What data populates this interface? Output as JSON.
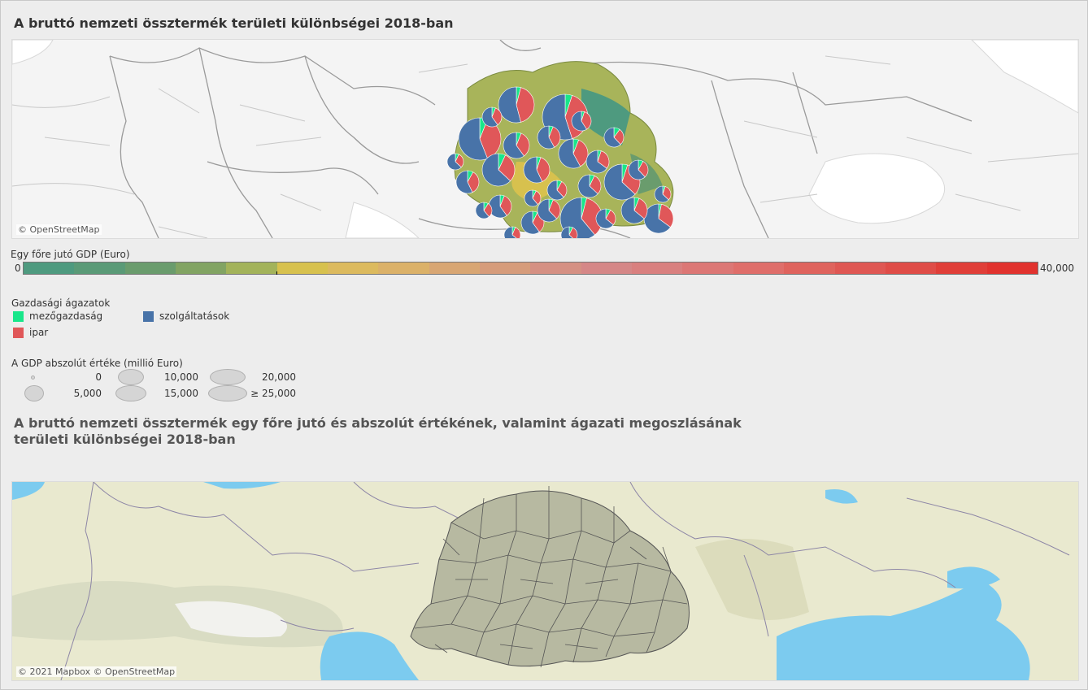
{
  "title1": "A bruttó nemzeti össztermék területi különbségei 2018-ban",
  "map1": {
    "attribution": "© OpenStreetMap"
  },
  "gdp_legend": {
    "title": "Egy főre jutó GDP (Euro)",
    "min_label": "0",
    "max_label": "40,000",
    "colors": [
      "#4e9a7f",
      "#5a9a77",
      "#6a9c6d",
      "#82a463",
      "#a3b35a",
      "#d7c14e",
      "#dcba5e",
      "#dbb168",
      "#d8a673",
      "#d69c7b",
      "#d59083",
      "#d58787",
      "#d9807f",
      "#dc7775",
      "#df6e6a",
      "#df635d",
      "#df5753",
      "#df4c47",
      "#e03e38",
      "#e1322e"
    ]
  },
  "sector_legend": {
    "title": "Gazdasági ágazatok",
    "items": [
      {
        "label": "mezőgazdaság",
        "color": "#19e68a"
      },
      {
        "label": "szolgáltatások",
        "color": "#4873a8"
      },
      {
        "label": "ipar",
        "color": "#e05759"
      }
    ]
  },
  "size_legend": {
    "title": "A GDP abszolút értéke (millió Euro)",
    "items": [
      "0",
      "5,000",
      "10,000",
      "15,000",
      "20,000",
      "≥ 25,000"
    ]
  },
  "title2": "A bruttó nemzeti össztermék egy főre jutó és abszolút értékének, valamint ágazati megoszlásának területi különbségei 2018-ban",
  "map2": {
    "attribution": "© 2021 Mapbox © OpenStreetMap"
  }
}
